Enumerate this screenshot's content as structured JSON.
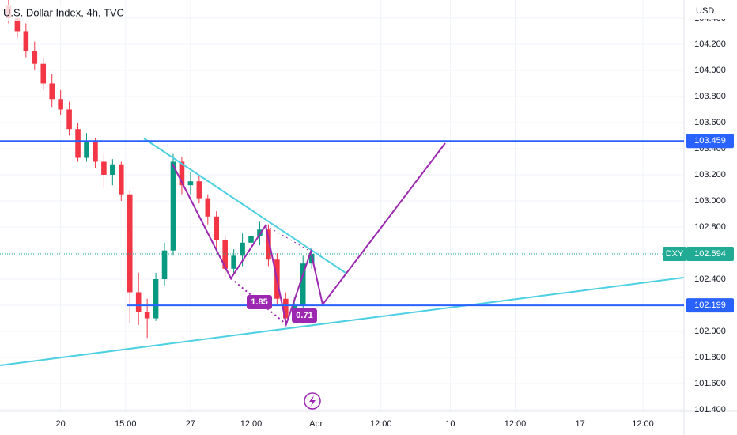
{
  "chart_data": {
    "type": "candlestick",
    "title": "U.S. Dollar Index, 4h, TVC",
    "currency": "USD",
    "symbol": "DXY",
    "up_color": "#089981",
    "down_color": "#f23645",
    "x": [
      2,
      4,
      6,
      8,
      10,
      12,
      14,
      16,
      18,
      20,
      22,
      24,
      26,
      28,
      30,
      32,
      34,
      36,
      38,
      40,
      42,
      44,
      46,
      48,
      50,
      52,
      54,
      56,
      58,
      60,
      62,
      64,
      66,
      68,
      70,
      72
    ],
    "open": [
      104.5,
      104.4,
      104.3,
      104.15,
      104.05,
      103.9,
      103.78,
      103.7,
      103.55,
      103.33,
      103.45,
      103.3,
      103.2,
      103.28,
      103.05,
      102.3,
      102.15,
      102.1,
      102.4,
      102.62,
      103.3,
      103.12,
      103.15,
      103.02,
      102.88,
      102.7,
      102.48,
      102.58,
      102.68,
      102.73,
      102.78,
      102.55,
      102.25,
      102.1,
      102.2,
      102.52
    ],
    "high": [
      104.55,
      104.45,
      104.36,
      104.22,
      104.1,
      103.97,
      103.85,
      103.76,
      103.6,
      103.52,
      103.48,
      103.36,
      103.32,
      103.3,
      103.08,
      102.45,
      102.25,
      102.45,
      102.68,
      103.36,
      103.34,
      103.22,
      103.2,
      103.05,
      102.92,
      102.74,
      102.63,
      102.75,
      102.8,
      102.84,
      102.82,
      102.6,
      102.3,
      102.26,
      102.58,
      102.64
    ],
    "low": [
      104.36,
      104.25,
      104.1,
      104.0,
      103.85,
      103.72,
      103.66,
      103.5,
      103.3,
      103.3,
      103.25,
      103.1,
      103.12,
      103.0,
      102.06,
      102.05,
      101.95,
      102.08,
      102.35,
      102.58,
      103.05,
      103.05,
      102.98,
      102.82,
      102.64,
      102.42,
      102.44,
      102.5,
      102.62,
      102.66,
      102.5,
      102.2,
      102.05,
      102.06,
      102.16,
      102.48
    ],
    "close": [
      104.4,
      104.3,
      104.15,
      104.05,
      103.9,
      103.78,
      103.7,
      103.55,
      103.33,
      103.45,
      103.3,
      103.2,
      103.28,
      103.05,
      102.3,
      102.15,
      102.1,
      102.4,
      102.62,
      103.3,
      103.12,
      103.15,
      103.02,
      102.88,
      102.7,
      102.48,
      102.58,
      102.68,
      102.73,
      102.78,
      102.55,
      102.25,
      102.1,
      102.2,
      102.52,
      102.594
    ],
    "last_price": 102.594,
    "last_price_color": "#22ab94",
    "levels": [
      {
        "value": 103.459,
        "color": "#2962ff"
      },
      {
        "value": 102.199,
        "color": "#2962ff"
      }
    ],
    "annotations": [
      "1.85",
      "0.71"
    ],
    "annotation_color": "#9c27b0",
    "xlim": [
      0,
      158
    ],
    "xticks": [
      {
        "value": 14,
        "label": "20"
      },
      {
        "value": 29,
        "label": "15:00"
      },
      {
        "value": 44,
        "label": "27"
      },
      {
        "value": 58,
        "label": "12:00"
      },
      {
        "value": 73,
        "label": "Apr"
      },
      {
        "value": 88,
        "label": "12:00"
      },
      {
        "value": 104,
        "label": "10"
      },
      {
        "value": 119,
        "label": "12:00"
      },
      {
        "value": 134,
        "label": "17"
      },
      {
        "value": 148.5,
        "label": "12:00"
      }
    ],
    "ylim": [
      101.388,
      104.539
    ],
    "yticks": [
      {
        "value": 101.4,
        "label": "101.400"
      },
      {
        "value": 101.6,
        "label": "101.600"
      },
      {
        "value": 101.8,
        "label": "101.800"
      },
      {
        "value": 102.0,
        "label": "102.000"
      },
      {
        "value": 102.2,
        "label": "102.200"
      },
      {
        "value": 102.4,
        "label": "102.400"
      },
      {
        "value": 102.6,
        "label": "102.600"
      },
      {
        "value": 102.8,
        "label": "102.800"
      },
      {
        "value": 103.0,
        "label": "103.000"
      },
      {
        "value": 103.2,
        "label": "103.200"
      },
      {
        "value": 103.4,
        "label": "103.400"
      },
      {
        "value": 103.6,
        "label": "103.600"
      },
      {
        "value": 103.8,
        "label": "103.800"
      },
      {
        "value": 104.0,
        "label": "104.000"
      },
      {
        "value": 104.2,
        "label": "104.200"
      },
      {
        "value": 104.4,
        "label": "104.400"
      }
    ],
    "grid": true
  }
}
